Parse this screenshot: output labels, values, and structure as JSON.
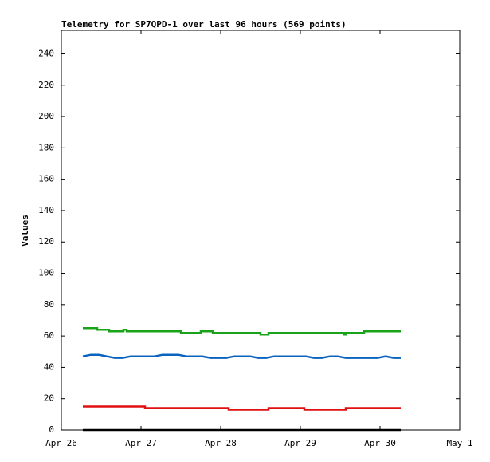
{
  "chart_data": {
    "type": "line",
    "title": "Telemetry for SP7QPD-1 over last 96 hours (569 points)",
    "y_label": "Values",
    "xlim": [
      0,
      5
    ],
    "xticks": [
      {
        "value": 0,
        "label": "Apr 26"
      },
      {
        "value": 1,
        "label": "Apr 27"
      },
      {
        "value": 2,
        "label": "Apr 28"
      },
      {
        "value": 3,
        "label": "Apr 29"
      },
      {
        "value": 4,
        "label": "Apr 30"
      },
      {
        "value": 5,
        "label": "May 1"
      }
    ],
    "ylim": [
      0,
      255
    ],
    "yticks": [
      0,
      20,
      40,
      60,
      80,
      100,
      120,
      140,
      160,
      180,
      200,
      220,
      240
    ],
    "series": [
      {
        "color": "#1aa31a",
        "x": [
          0.27,
          0.45,
          0.45,
          0.6,
          0.6,
          0.78,
          0.78,
          0.82,
          0.82,
          1.5,
          1.5,
          1.75,
          1.75,
          1.9,
          1.9,
          2.5,
          2.5,
          2.6,
          2.6,
          3.55,
          3.55,
          3.57,
          3.57,
          3.8,
          3.8,
          4.26
        ],
        "values": [
          65,
          65,
          64,
          64,
          63,
          63,
          64,
          64,
          63,
          63,
          62,
          62,
          63,
          63,
          62,
          62,
          61,
          61,
          62,
          62,
          61,
          61,
          62,
          62,
          63,
          63
        ]
      },
      {
        "color": "#0a63bf",
        "x": [
          0.27,
          0.37,
          0.47,
          0.57,
          0.67,
          0.77,
          0.87,
          0.97,
          1.07,
          1.17,
          1.27,
          1.37,
          1.47,
          1.57,
          1.67,
          1.77,
          1.87,
          1.97,
          2.07,
          2.17,
          2.27,
          2.37,
          2.47,
          2.57,
          2.67,
          2.77,
          2.87,
          2.97,
          3.07,
          3.17,
          3.27,
          3.37,
          3.47,
          3.57,
          3.67,
          3.77,
          3.87,
          3.97,
          4.07,
          4.17,
          4.26
        ],
        "values": [
          47,
          48,
          48,
          47,
          46,
          46,
          47,
          47,
          47,
          47,
          48,
          48,
          48,
          47,
          47,
          47,
          46,
          46,
          46,
          47,
          47,
          47,
          46,
          46,
          47,
          47,
          47,
          47,
          47,
          46,
          46,
          47,
          47,
          46,
          46,
          46,
          46,
          46,
          47,
          46,
          46
        ]
      },
      {
        "color": "#e01010",
        "x": [
          0.27,
          1.05,
          1.05,
          2.1,
          2.1,
          2.6,
          2.6,
          3.05,
          3.05,
          3.57,
          3.57,
          4.26
        ],
        "values": [
          15,
          15,
          14,
          14,
          13,
          13,
          14,
          14,
          13,
          13,
          14,
          14
        ]
      },
      {
        "color": "#000000",
        "x": [
          0.27,
          4.26
        ],
        "values": [
          0,
          0
        ]
      }
    ]
  }
}
